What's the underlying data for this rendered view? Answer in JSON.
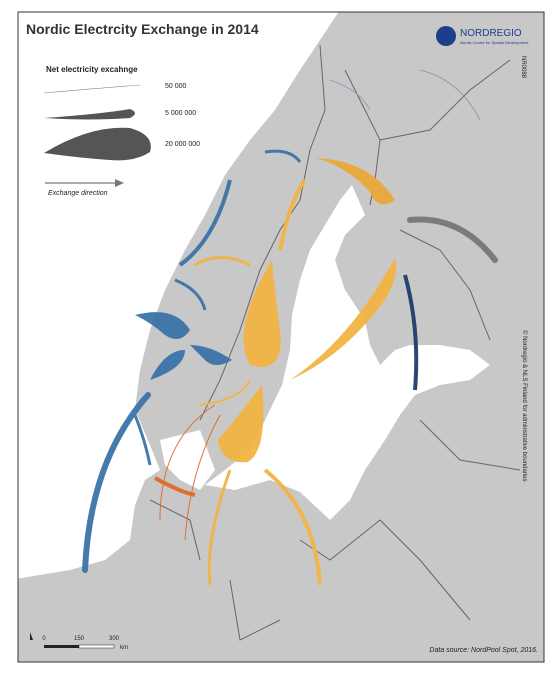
{
  "title": "Nordic Electrcity Exchange in 2014",
  "logo": {
    "name": "NORDREGIO",
    "tagline": "Nordic Centre for Spatial Development"
  },
  "map_id": "NR0088",
  "legend": {
    "title": "Net electricity excahnge",
    "sizes": [
      "50 000",
      "5 000 000",
      "20 000 000"
    ],
    "direction": "Exchange direction"
  },
  "copyright": "© Nordregio & NLS Finland for administrative boundaries",
  "scale": {
    "labels": [
      "0",
      "150",
      "300"
    ],
    "unit": "km"
  },
  "source": "Data source: NordPool Spot, 2016."
}
